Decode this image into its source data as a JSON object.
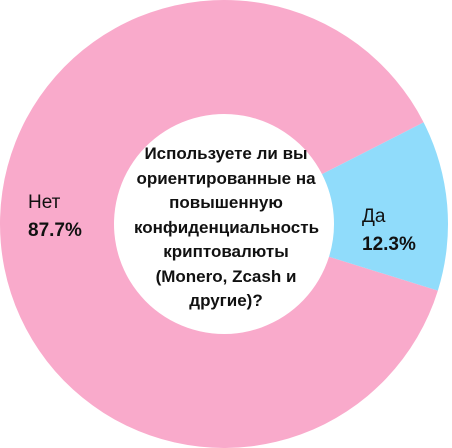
{
  "chart_data": {
    "type": "donut",
    "title": "Используете ли вы ориентированные на повышенную конфиденциальность криптовалюты (Monero, Zcash и другие)?",
    "categories": [
      "Нет",
      "Да"
    ],
    "values": [
      87.7,
      12.3
    ],
    "value_labels": [
      "87.7%",
      "12.3%"
    ],
    "colors": [
      "#f9aacb",
      "#90dcfb"
    ]
  }
}
